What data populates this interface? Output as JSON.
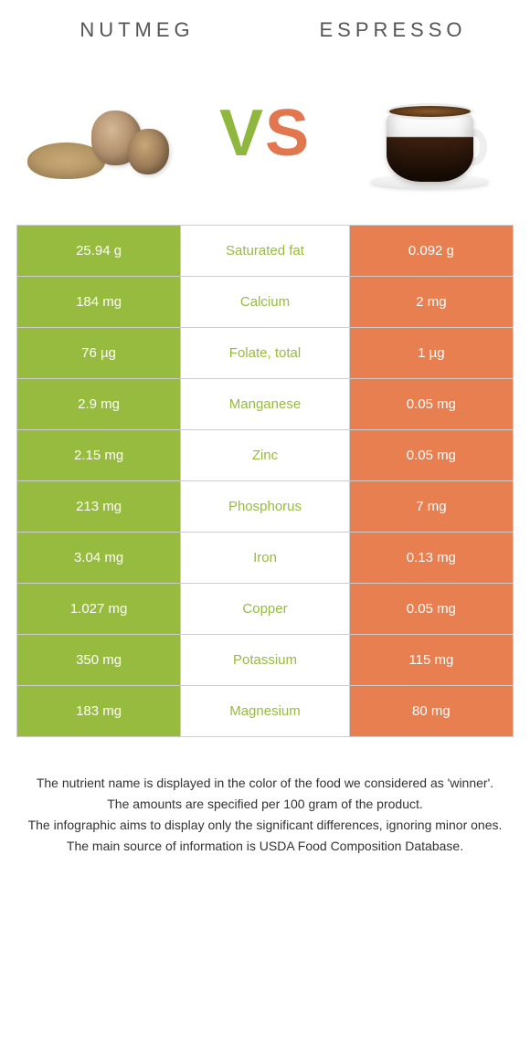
{
  "header": {
    "left_title": "Nutmeg",
    "right_title": "Espresso",
    "vs_v": "V",
    "vs_s": "S"
  },
  "colors": {
    "left_bg": "#97bb3e",
    "right_bg": "#e77f51",
    "left_text": "#97bb3e",
    "right_text": "#e77f51",
    "row_border": "#cccccc",
    "body_bg": "#ffffff"
  },
  "table": {
    "rows": [
      {
        "left": "25.94 g",
        "label": "Saturated fat",
        "right": "0.092 g",
        "winner": "left"
      },
      {
        "left": "184 mg",
        "label": "Calcium",
        "right": "2 mg",
        "winner": "left"
      },
      {
        "left": "76 µg",
        "label": "Folate, total",
        "right": "1 µg",
        "winner": "left"
      },
      {
        "left": "2.9 mg",
        "label": "Manganese",
        "right": "0.05 mg",
        "winner": "left"
      },
      {
        "left": "2.15 mg",
        "label": "Zinc",
        "right": "0.05 mg",
        "winner": "left"
      },
      {
        "left": "213 mg",
        "label": "Phosphorus",
        "right": "7 mg",
        "winner": "left"
      },
      {
        "left": "3.04 mg",
        "label": "Iron",
        "right": "0.13 mg",
        "winner": "left"
      },
      {
        "left": "1.027 mg",
        "label": "Copper",
        "right": "0.05 mg",
        "winner": "left"
      },
      {
        "left": "350 mg",
        "label": "Potassium",
        "right": "115 mg",
        "winner": "left"
      },
      {
        "left": "183 mg",
        "label": "Magnesium",
        "right": "80 mg",
        "winner": "left"
      }
    ]
  },
  "footer": {
    "line1": "The nutrient name is displayed in the color of the food we considered as 'winner'.",
    "line2": "The amounts are specified per 100 gram of the product.",
    "line3": "The infographic aims to display only the significant differences, ignoring minor ones.",
    "line4": "The main source of information is USDA Food Composition Database."
  }
}
